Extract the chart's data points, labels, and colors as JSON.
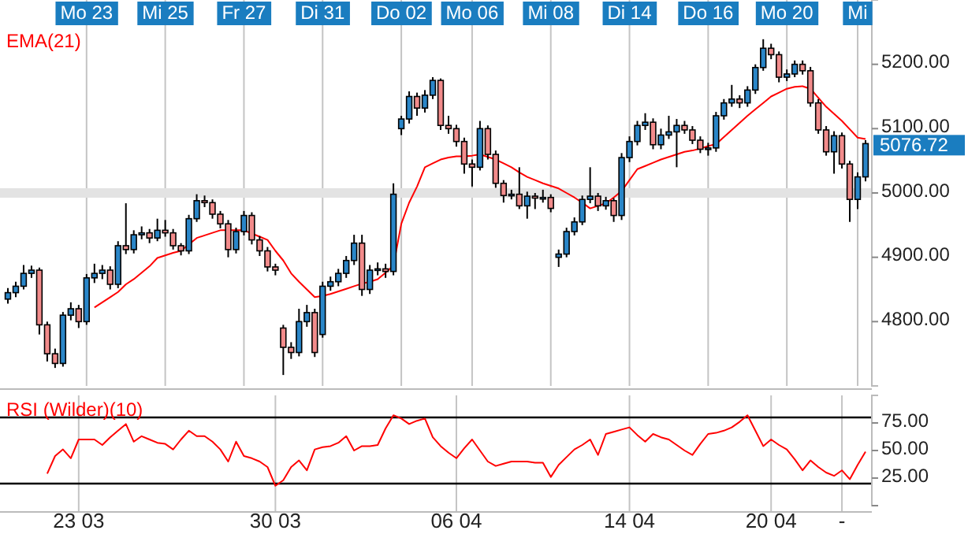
{
  "chart_data": [
    {
      "type": "candlestick",
      "categories": [
        null,
        null,
        null,
        null,
        null,
        null,
        null,
        null,
        null,
        null,
        "Mo 23",
        null,
        null,
        null,
        null,
        null,
        null,
        null,
        null,
        null,
        "Mi 25",
        null,
        null,
        null,
        null,
        null,
        null,
        null,
        null,
        null,
        "Fr 27",
        null,
        null,
        null,
        null,
        null,
        null,
        null,
        null,
        null,
        "Di 31",
        null,
        null,
        null,
        null,
        null,
        null,
        null,
        null,
        null,
        "Do 02",
        null,
        null,
        null,
        null,
        null,
        null,
        null,
        null,
        "Mo 06",
        null,
        null,
        null,
        null,
        null,
        null,
        null,
        null,
        null,
        "Mi 08",
        null,
        null,
        null,
        null,
        null,
        null,
        null,
        null,
        null,
        "Di 14",
        null,
        null,
        null,
        null,
        null,
        null,
        null,
        null,
        null,
        "Do 16",
        null,
        null,
        null,
        null,
        null,
        null,
        null,
        null,
        null,
        "Mo 20",
        null,
        null,
        null,
        null,
        null,
        null,
        null,
        null,
        "Mi",
        null
      ],
      "ohlc": [
        [
          4835,
          4852,
          4828,
          4845
        ],
        [
          4845,
          4862,
          4838,
          4855
        ],
        [
          4855,
          4888,
          4850,
          4875
        ],
        [
          4875,
          4887,
          4868,
          4880
        ],
        [
          4880,
          4884,
          4780,
          4795
        ],
        [
          4795,
          4800,
          4738,
          4750
        ],
        [
          4750,
          4758,
          4728,
          4735
        ],
        [
          4735,
          4815,
          4730,
          4810
        ],
        [
          4810,
          4830,
          4802,
          4820
        ],
        [
          4820,
          4826,
          4790,
          4800
        ],
        [
          4800,
          4874,
          4795,
          4868
        ],
        [
          4868,
          4890,
          4860,
          4875
        ],
        [
          4875,
          4888,
          4866,
          4880
        ],
        [
          4880,
          4886,
          4850,
          4858
        ],
        [
          4858,
          4925,
          4852,
          4918
        ],
        [
          4918,
          4984,
          4905,
          4912
        ],
        [
          4912,
          4942,
          4906,
          4935
        ],
        [
          4935,
          4948,
          4928,
          4938
        ],
        [
          4938,
          4944,
          4922,
          4930
        ],
        [
          4930,
          4960,
          4925,
          4942
        ],
        [
          4942,
          4958,
          4932,
          4938
        ],
        [
          4938,
          4944,
          4912,
          4918
        ],
        [
          4918,
          4922,
          4903,
          4910
        ],
        [
          4910,
          4966,
          4905,
          4960
        ],
        [
          4960,
          4998,
          4955,
          4988
        ],
        [
          4988,
          4996,
          4978,
          4985
        ],
        [
          4985,
          4990,
          4960,
          4967
        ],
        [
          4967,
          4972,
          4945,
          4952
        ],
        [
          4952,
          4958,
          4900,
          4912
        ],
        [
          4912,
          4946,
          4906,
          4940
        ],
        [
          4940,
          4972,
          4934,
          4965
        ],
        [
          4965,
          4970,
          4920,
          4927
        ],
        [
          4927,
          4933,
          4902,
          4910
        ],
        [
          4910,
          4916,
          4878,
          4885
        ],
        [
          4885,
          4890,
          4872,
          4880
        ],
        [
          4790,
          4795,
          4717,
          4760
        ],
        [
          4760,
          4768,
          4742,
          4752
        ],
        [
          4752,
          4820,
          4746,
          4800
        ],
        [
          4800,
          4826,
          4792,
          4814
        ],
        [
          4814,
          4820,
          4745,
          4752
        ],
        [
          4780,
          4862,
          4775,
          4855
        ],
        [
          4855,
          4870,
          4848,
          4862
        ],
        [
          4862,
          4882,
          4855,
          4875
        ],
        [
          4875,
          4902,
          4868,
          4895
        ],
        [
          4895,
          4935,
          4888,
          4922
        ],
        [
          4922,
          4935,
          4840,
          4850
        ],
        [
          4850,
          4888,
          4843,
          4880
        ],
        [
          4880,
          4892,
          4872,
          4882
        ],
        [
          4882,
          4890,
          4868,
          4878
        ],
        [
          4878,
          5015,
          4872,
          4998
        ],
        [
          5100,
          5120,
          5090,
          5115
        ],
        [
          5115,
          5158,
          5108,
          5150
        ],
        [
          5150,
          5156,
          5120,
          5132
        ],
        [
          5132,
          5160,
          5125,
          5152
        ],
        [
          5152,
          5180,
          5146,
          5175
        ],
        [
          5175,
          5178,
          5098,
          5105
        ],
        [
          5105,
          5120,
          5092,
          5100
        ],
        [
          5100,
          5106,
          5072,
          5080
        ],
        [
          5080,
          5086,
          5030,
          5045
        ],
        [
          5045,
          5052,
          5010,
          5040
        ],
        [
          5040,
          5112,
          5035,
          5100
        ],
        [
          5100,
          5105,
          5052,
          5060
        ],
        [
          5060,
          5066,
          5008,
          5015
        ],
        [
          5015,
          5020,
          4985,
          4996
        ],
        [
          4996,
          5005,
          4990,
          4998
        ],
        [
          4998,
          5040,
          4975,
          4980
        ],
        [
          4980,
          5002,
          4960,
          4995
        ],
        [
          4995,
          5000,
          4975,
          4992
        ],
        [
          4992,
          5005,
          4985,
          4993
        ],
        [
          4993,
          4998,
          4970,
          4976
        ],
        [
          4900,
          4912,
          4885,
          4905
        ],
        [
          4905,
          4946,
          4900,
          4940
        ],
        [
          4940,
          4962,
          4934,
          4955
        ],
        [
          4955,
          4996,
          4950,
          4990
        ],
        [
          4990,
          5040,
          4984,
          4995
        ],
        [
          4995,
          5000,
          4972,
          4980
        ],
        [
          4980,
          4994,
          4974,
          4988
        ],
        [
          4988,
          4992,
          4955,
          4965
        ],
        [
          4965,
          5062,
          4958,
          5055
        ],
        [
          5055,
          5088,
          5048,
          5080
        ],
        [
          5080,
          5112,
          5074,
          5105
        ],
        [
          5105,
          5124,
          5098,
          5110
        ],
        [
          5110,
          5116,
          5068,
          5075
        ],
        [
          5075,
          5100,
          5068,
          5090
        ],
        [
          5090,
          5120,
          5084,
          5095
        ],
        [
          5095,
          5115,
          5040,
          5105
        ],
        [
          5105,
          5112,
          5092,
          5098
        ],
        [
          5098,
          5104,
          5076,
          5082
        ],
        [
          5082,
          5088,
          5062,
          5068
        ],
        [
          5068,
          5078,
          5058,
          5070
        ],
        [
          5070,
          5126,
          5064,
          5120
        ],
        [
          5120,
          5146,
          5114,
          5140
        ],
        [
          5140,
          5168,
          5134,
          5146
        ],
        [
          5146,
          5152,
          5132,
          5140
        ],
        [
          5140,
          5166,
          5134,
          5160
        ],
        [
          5160,
          5200,
          5154,
          5195
        ],
        [
          5195,
          5239,
          5190,
          5225
        ],
        [
          5225,
          5232,
          5208,
          5215
        ],
        [
          5215,
          5220,
          5172,
          5180
        ],
        [
          5180,
          5192,
          5174,
          5185
        ],
        [
          5185,
          5206,
          5180,
          5200
        ],
        [
          5200,
          5206,
          5184,
          5190
        ],
        [
          5190,
          5196,
          5134,
          5140
        ],
        [
          5140,
          5146,
          5092,
          5098
        ],
        [
          5098,
          5104,
          5058,
          5064
        ],
        [
          5064,
          5096,
          5030,
          5089
        ],
        [
          5089,
          5094,
          5038,
          5045
        ],
        [
          5045,
          5050,
          4955,
          4990
        ],
        [
          4990,
          5032,
          4975,
          5025
        ],
        [
          5025,
          5082,
          5018,
          5076.72
        ]
      ],
      "colors": [
        "#2a86c8",
        "#2a86c8",
        "#2a86c8",
        "#2a86c8",
        "#f28b8b",
        "#f28b8b",
        "#f28b8b",
        "#2a86c8",
        "#2a86c8",
        "#f28b8b",
        "#2a86c8",
        "#2a86c8",
        "#2a86c8",
        "#f28b8b",
        "#2a86c8",
        "#f28b8b",
        "#2a86c8",
        "#2a86c8",
        "#f28b8b",
        "#2a86c8",
        "#f28b8b",
        "#f28b8b",
        "#f28b8b",
        "#2a86c8",
        "#2a86c8",
        "#f28b8b",
        "#f28b8b",
        "#f28b8b",
        "#f28b8b",
        "#2a86c8",
        "#2a86c8",
        "#f28b8b",
        "#f28b8b",
        "#f28b8b",
        "#f28b8b",
        "#f28b8b",
        "#f28b8b",
        "#2a86c8",
        "#2a86c8",
        "#f28b8b",
        "#2a86c8",
        "#2a86c8",
        "#2a86c8",
        "#2a86c8",
        "#2a86c8",
        "#f28b8b",
        "#2a86c8",
        "#2a86c8",
        "#f28b8b",
        "#2a86c8",
        "#2a86c8",
        "#2a86c8",
        "#f28b8b",
        "#2a86c8",
        "#2a86c8",
        "#f28b8b",
        "#f28b8b",
        "#f28b8b",
        "#f28b8b",
        "#f28b8b",
        "#2a86c8",
        "#f28b8b",
        "#f28b8b",
        "#f28b8b",
        "#2a86c8",
        "#f28b8b",
        "#2a86c8",
        "#f28b8b",
        "#2a86c8",
        "#f28b8b",
        "#2a86c8",
        "#2a86c8",
        "#2a86c8",
        "#2a86c8",
        "#2a86c8",
        "#f28b8b",
        "#2a86c8",
        "#f28b8b",
        "#2a86c8",
        "#2a86c8",
        "#2a86c8",
        "#2a86c8",
        "#f28b8b",
        "#2a86c8",
        "#2a86c8",
        "#2a86c8",
        "#f28b8b",
        "#f28b8b",
        "#f28b8b",
        "#2a86c8",
        "#2a86c8",
        "#2a86c8",
        "#2a86c8",
        "#f28b8b",
        "#2a86c8",
        "#2a86c8",
        "#2a86c8",
        "#f28b8b",
        "#f28b8b",
        "#2a86c8",
        "#2a86c8",
        "#f28b8b",
        "#f28b8b",
        "#f28b8b",
        "#f28b8b",
        "#2a86c8",
        "#f28b8b",
        "#f28b8b",
        "#2a86c8",
        "#2a86c8"
      ],
      "series": [
        {
          "name": "EMA(21)",
          "type": "line",
          "color": "#ff0000",
          "values": [
            null,
            null,
            null,
            null,
            null,
            null,
            null,
            null,
            null,
            null,
            null,
            4822,
            4830,
            4838,
            4846,
            4858,
            4866,
            4876,
            4886,
            4899,
            4903,
            4907,
            4910,
            4920,
            4930,
            4934,
            4938,
            4942,
            4942,
            4942,
            4942,
            4937,
            4932,
            4927,
            4910,
            4895,
            4875,
            4862,
            4850,
            4838,
            4840,
            4843,
            4847,
            4851,
            4855,
            4859,
            4862,
            4866,
            4876,
            4887,
            4952,
            4985,
            5010,
            5040,
            5046,
            5052,
            5055,
            5057,
            5057,
            5058,
            5060,
            5056,
            5052,
            5046,
            5040,
            5032,
            5025,
            5020,
            5015,
            5011,
            5007,
            5000,
            4993,
            4985,
            4976,
            4980,
            4984,
            4993,
            5003,
            5020,
            5037,
            5042,
            5047,
            5052,
            5056,
            5060,
            5064,
            5066,
            5069,
            5073,
            5076,
            5087,
            5098,
            5109,
            5120,
            5130,
            5140,
            5150,
            5156,
            5162,
            5165,
            5166,
            5162,
            5148,
            5134,
            5123,
            5112,
            5099,
            5086,
            5084
          ]
        }
      ],
      "ylim": [
        4700,
        5300
      ],
      "yticks": [
        {
          "value": 4800,
          "label": "4800.00"
        },
        {
          "value": 4900,
          "label": "4900.00"
        },
        {
          "value": 5000,
          "label": "5000.00"
        },
        {
          "value": 5100,
          "label": "5100.00"
        },
        {
          "value": 5200,
          "label": "5200.00"
        }
      ],
      "grid": "x",
      "ref_lines": [
        {
          "axis": "y",
          "value": 5000,
          "color": "#e3e3e3"
        }
      ],
      "annotations": [
        "5076.72"
      ]
    },
    {
      "type": "line",
      "categories": [
        null,
        null,
        null,
        null,
        null,
        null,
        null,
        null,
        null,
        "23 03",
        null,
        null,
        null,
        null,
        null,
        null,
        null,
        null,
        null,
        null,
        null,
        null,
        null,
        null,
        null,
        null,
        null,
        null,
        null,
        null,
        null,
        null,
        null,
        null,
        "30 03",
        null,
        null,
        null,
        null,
        null,
        null,
        null,
        null,
        null,
        null,
        null,
        null,
        null,
        null,
        null,
        null,
        null,
        null,
        null,
        null,
        null,
        null,
        "06 04",
        null,
        null,
        null,
        null,
        null,
        null,
        null,
        null,
        null,
        null,
        null,
        null,
        null,
        null,
        null,
        null,
        null,
        null,
        null,
        null,
        null,
        "14 04",
        null,
        null,
        null,
        null,
        null,
        null,
        null,
        null,
        null,
        null,
        null,
        null,
        null,
        null,
        null,
        null,
        null,
        "20 04",
        null,
        null,
        null,
        null,
        null,
        null,
        null,
        null,
        "-",
        null,
        null,
        null
      ],
      "series": [
        {
          "name": "RSI (Wilder)(10)",
          "color": "#ff0000",
          "values": [
            null,
            null,
            null,
            null,
            null,
            29,
            45,
            51,
            43,
            60,
            60,
            60,
            55,
            62,
            68,
            74,
            58,
            63,
            60,
            57,
            56,
            51,
            60,
            68,
            63,
            63,
            58,
            51,
            40,
            58,
            45,
            43,
            40,
            35,
            18,
            23,
            35,
            41,
            32,
            51,
            53,
            54,
            57,
            63,
            50,
            54,
            54,
            55,
            70,
            82,
            79,
            74,
            77,
            79,
            62,
            54,
            48,
            43,
            52,
            60,
            50,
            40,
            36,
            38,
            40,
            40,
            40,
            39,
            39,
            26,
            37,
            44,
            51,
            55,
            60,
            46,
            65,
            67,
            69,
            71,
            64,
            58,
            65,
            62,
            60,
            55,
            50,
            46,
            56,
            65,
            66,
            68,
            71,
            76,
            82,
            68,
            54,
            60,
            55,
            51,
            42,
            32,
            41,
            35,
            30,
            27,
            32,
            24,
            37,
            49
          ]
        }
      ],
      "ylim": [
        0,
        100
      ],
      "yticks": [
        {
          "value": 0,
          "label": null
        },
        {
          "value": 25,
          "label": "25.00"
        },
        {
          "value": 50,
          "label": "50.00"
        },
        {
          "value": 75,
          "label": "75.00"
        }
      ],
      "grid": "x",
      "ref_lines": [
        {
          "axis": "y",
          "value": 80,
          "color": "#000000"
        },
        {
          "axis": "y",
          "value": 20,
          "color": "#000000"
        }
      ]
    }
  ]
}
